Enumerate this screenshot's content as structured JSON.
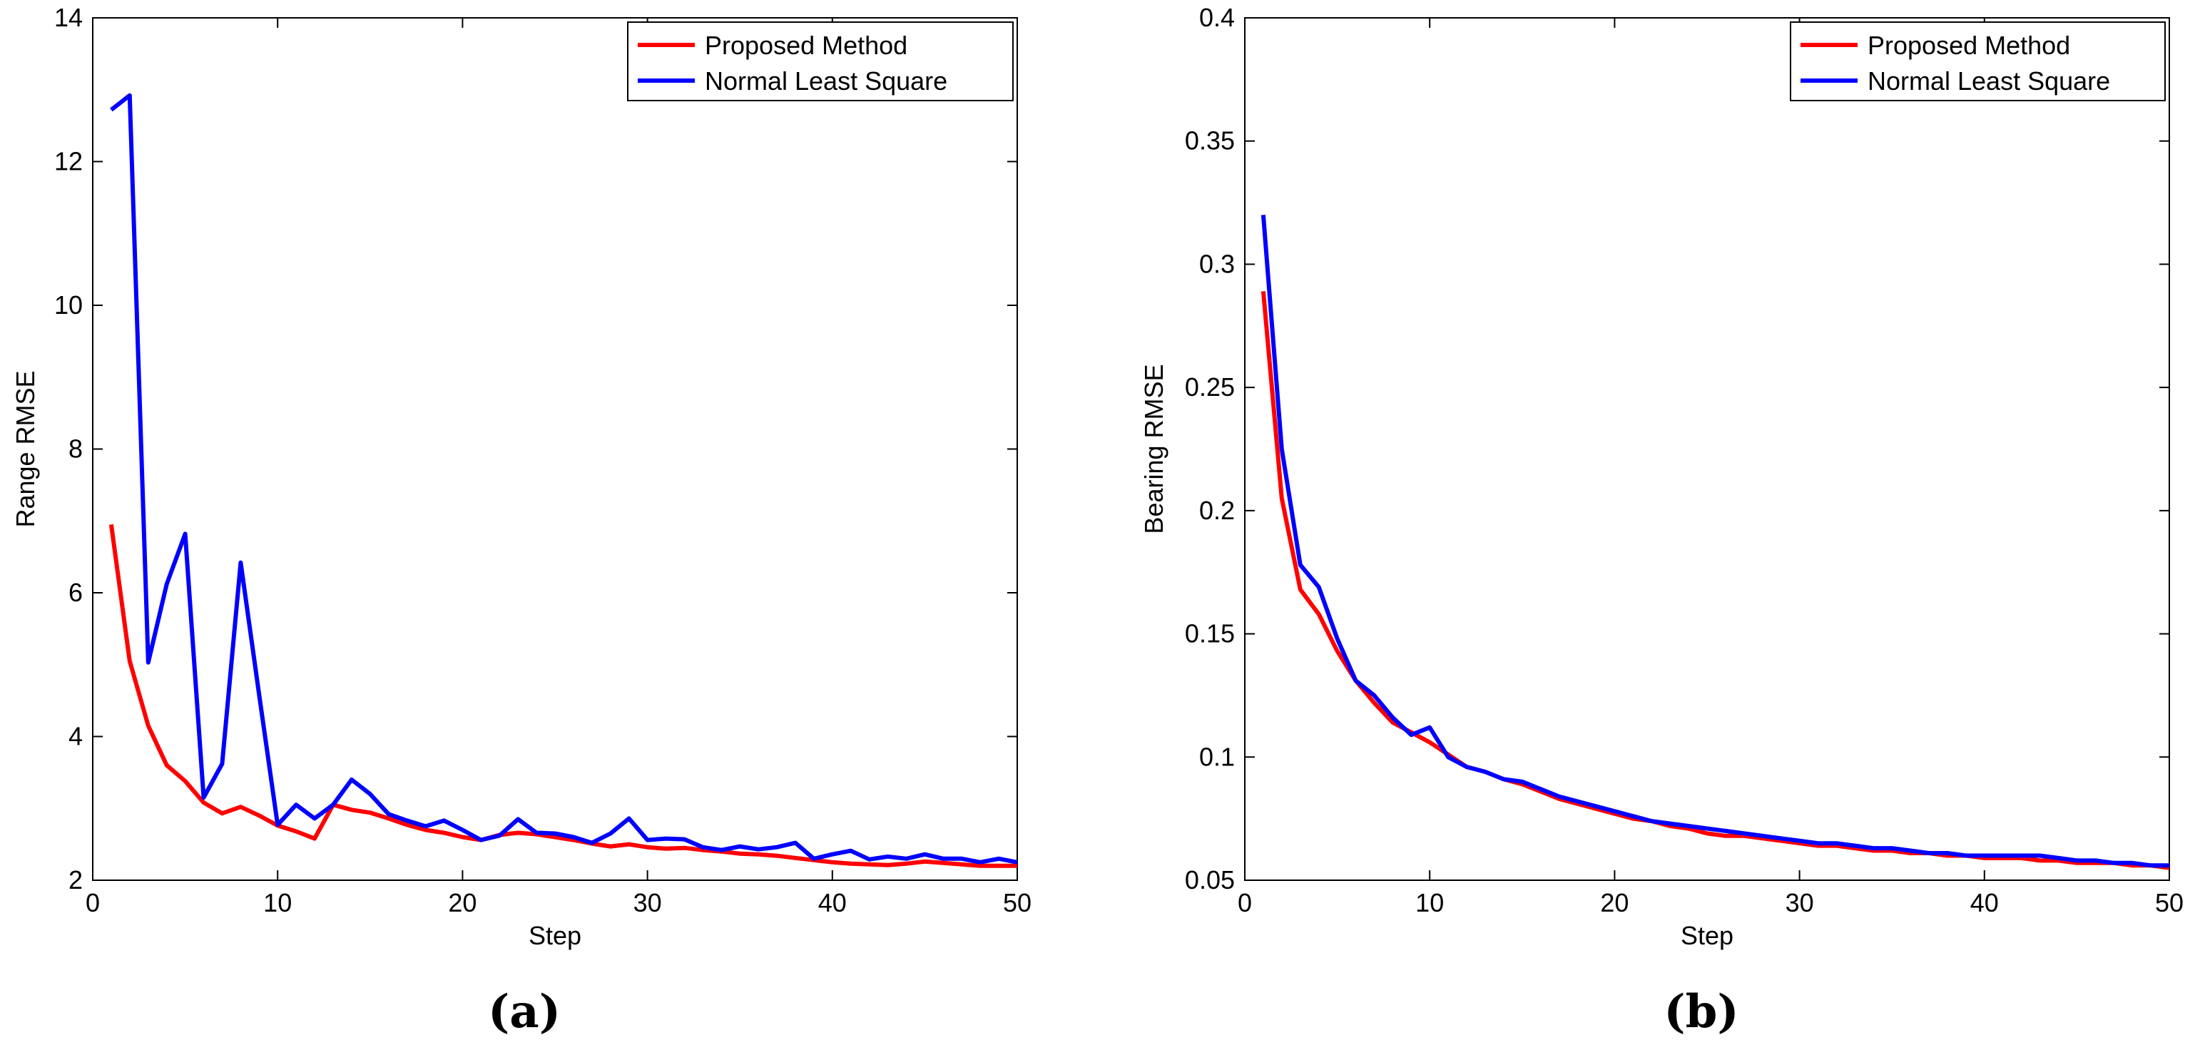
{
  "colors": {
    "proposed": "#ff0000",
    "normal": "#0000ff",
    "axis": "#000000",
    "background": "#ffffff"
  },
  "chart_data": [
    {
      "type": "line",
      "panel_label": "(a)",
      "title": "",
      "xlabel": "Step",
      "ylabel": "Range RMSE",
      "xlim": [
        0,
        50
      ],
      "ylim": [
        2,
        14
      ],
      "x_ticks": [
        0,
        10,
        20,
        30,
        40,
        50
      ],
      "y_ticks": [
        2,
        4,
        6,
        8,
        10,
        12,
        14
      ],
      "x_tick_labels": [
        "0",
        "10",
        "20",
        "30",
        "40",
        "50"
      ],
      "y_tick_labels": [
        "2",
        "4",
        "6",
        "8",
        "10",
        "12",
        "14"
      ],
      "grid": false,
      "legend_position": "top-right",
      "x": [
        1,
        2,
        3,
        4,
        5,
        6,
        7,
        8,
        9,
        10,
        11,
        12,
        13,
        14,
        15,
        16,
        17,
        18,
        19,
        20,
        21,
        22,
        23,
        24,
        25,
        26,
        27,
        28,
        29,
        30,
        31,
        32,
        33,
        34,
        35,
        36,
        37,
        38,
        39,
        40,
        41,
        42,
        43,
        44,
        45,
        46,
        47,
        48,
        49,
        50
      ],
      "series": [
        {
          "name": "Proposed Method",
          "color_key": "proposed",
          "values": [
            6.95,
            5.05,
            4.15,
            3.6,
            3.38,
            3.08,
            2.93,
            3.02,
            2.9,
            2.76,
            2.68,
            2.58,
            3.05,
            2.98,
            2.94,
            2.86,
            2.77,
            2.7,
            2.66,
            2.6,
            2.56,
            2.63,
            2.66,
            2.64,
            2.6,
            2.56,
            2.51,
            2.47,
            2.5,
            2.46,
            2.44,
            2.45,
            2.42,
            2.4,
            2.37,
            2.36,
            2.34,
            2.31,
            2.28,
            2.25,
            2.23,
            2.22,
            2.21,
            2.23,
            2.26,
            2.24,
            2.22,
            2.2,
            2.2,
            2.2
          ]
        },
        {
          "name": "Normal Least Square",
          "color_key": "normal",
          "values": [
            12.72,
            12.92,
            5.03,
            6.12,
            6.82,
            3.15,
            3.62,
            6.42,
            4.58,
            2.77,
            3.05,
            2.86,
            3.05,
            3.4,
            3.2,
            2.92,
            2.83,
            2.75,
            2.83,
            2.7,
            2.56,
            2.62,
            2.85,
            2.66,
            2.65,
            2.6,
            2.52,
            2.65,
            2.86,
            2.56,
            2.58,
            2.57,
            2.46,
            2.42,
            2.47,
            2.43,
            2.46,
            2.52,
            2.3,
            2.36,
            2.41,
            2.29,
            2.33,
            2.3,
            2.36,
            2.3,
            2.3,
            2.25,
            2.3,
            2.25
          ]
        }
      ]
    },
    {
      "type": "line",
      "panel_label": "(b)",
      "title": "",
      "xlabel": "Step",
      "ylabel": "Bearing RMSE",
      "xlim": [
        0,
        50
      ],
      "ylim": [
        0.05,
        0.4
      ],
      "x_ticks": [
        0,
        10,
        20,
        30,
        40,
        50
      ],
      "y_ticks": [
        0.05,
        0.1,
        0.15,
        0.2,
        0.25,
        0.3,
        0.35,
        0.4
      ],
      "x_tick_labels": [
        "0",
        "10",
        "20",
        "30",
        "40",
        "50"
      ],
      "y_tick_labels": [
        "0.05",
        "0.1",
        "0.15",
        "0.2",
        "0.25",
        "0.3",
        "0.35",
        "0.4"
      ],
      "grid": false,
      "legend_position": "top-right",
      "x": [
        1,
        2,
        3,
        4,
        5,
        6,
        7,
        8,
        9,
        10,
        11,
        12,
        13,
        14,
        15,
        16,
        17,
        18,
        19,
        20,
        21,
        22,
        23,
        24,
        25,
        26,
        27,
        28,
        29,
        30,
        31,
        32,
        33,
        34,
        35,
        36,
        37,
        38,
        39,
        40,
        41,
        42,
        43,
        44,
        45,
        46,
        47,
        48,
        49,
        50
      ],
      "series": [
        {
          "name": "Proposed Method",
          "color_key": "proposed",
          "values": [
            0.289,
            0.205,
            0.168,
            0.158,
            0.143,
            0.131,
            0.122,
            0.114,
            0.11,
            0.106,
            0.101,
            0.096,
            0.094,
            0.091,
            0.089,
            0.086,
            0.083,
            0.081,
            0.079,
            0.077,
            0.075,
            0.074,
            0.072,
            0.071,
            0.069,
            0.068,
            0.068,
            0.067,
            0.066,
            0.065,
            0.064,
            0.064,
            0.063,
            0.062,
            0.062,
            0.061,
            0.061,
            0.06,
            0.06,
            0.059,
            0.059,
            0.059,
            0.058,
            0.058,
            0.057,
            0.057,
            0.057,
            0.056,
            0.056,
            0.055
          ]
        },
        {
          "name": "Normal Least Square",
          "color_key": "normal",
          "values": [
            0.32,
            0.225,
            0.178,
            0.169,
            0.148,
            0.131,
            0.125,
            0.116,
            0.109,
            0.112,
            0.1,
            0.096,
            0.094,
            0.091,
            0.09,
            0.087,
            0.084,
            0.082,
            0.08,
            0.078,
            0.076,
            0.074,
            0.073,
            0.072,
            0.071,
            0.07,
            0.069,
            0.068,
            0.067,
            0.066,
            0.065,
            0.065,
            0.064,
            0.063,
            0.063,
            0.062,
            0.061,
            0.061,
            0.06,
            0.06,
            0.06,
            0.06,
            0.06,
            0.059,
            0.058,
            0.058,
            0.057,
            0.057,
            0.056,
            0.056
          ]
        }
      ]
    }
  ]
}
